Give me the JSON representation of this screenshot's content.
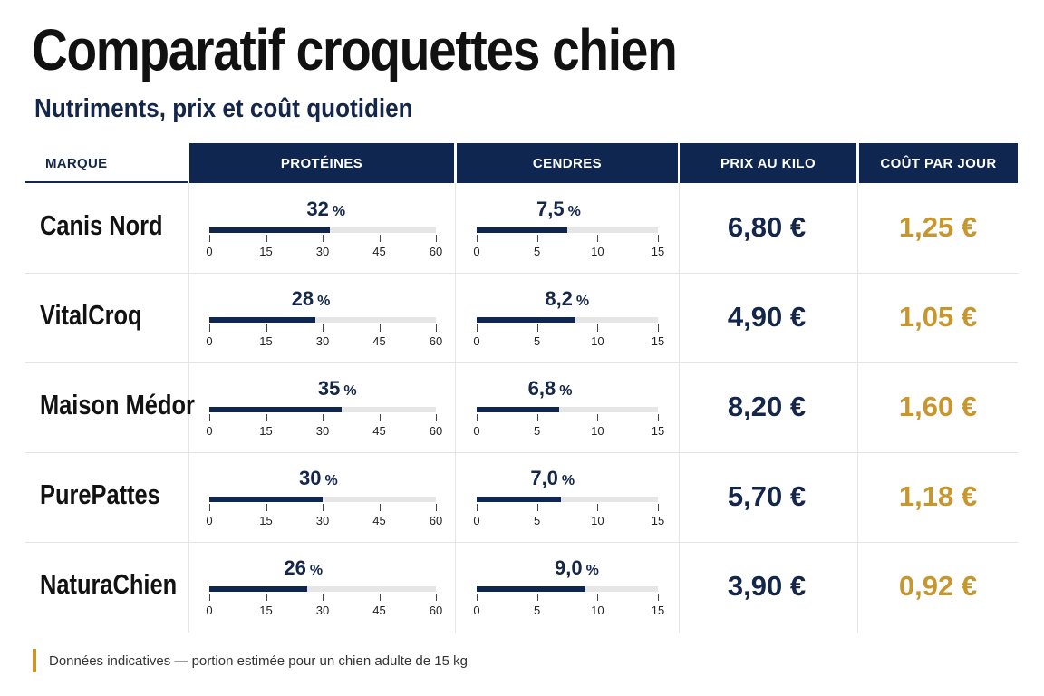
{
  "title": "Comparatif croquettes chien",
  "subtitle": "Nutriments, prix et coût quotidien",
  "headers": {
    "brand": "MARQUE",
    "protein": "PROTÉINES",
    "ash": "CENDRES",
    "price": "PRIX AU KILO",
    "daily_cost": "COÛT PAR JOUR"
  },
  "footnote": "Données indicatives — portion estimée pour un chien adulte de 15 kg",
  "colors": {
    "navy": "#0e2650",
    "gold": "#c9962e",
    "track": "#e6e6e6"
  },
  "chart_data": {
    "type": "table",
    "unit": "%",
    "protein_axis": {
      "ticks": [
        0,
        15,
        30,
        45,
        60
      ],
      "range": [
        0,
        60
      ]
    },
    "ash_axis": {
      "ticks": [
        0,
        5,
        10,
        15
      ],
      "range": [
        0,
        15
      ]
    },
    "rows": [
      {
        "brand": "Canis Nord",
        "protein": 32,
        "protein_label": "32",
        "ash": 7.5,
        "ash_label": "7,5",
        "price": "6,80 €",
        "daily_cost": "1,25 €"
      },
      {
        "brand": "VitalCroq",
        "protein": 28,
        "protein_label": "28",
        "ash": 8.2,
        "ash_label": "8,2",
        "price": "4,90 €",
        "daily_cost": "1,05 €"
      },
      {
        "brand": "Maison Médor",
        "protein": 35,
        "protein_label": "35",
        "ash": 6.8,
        "ash_label": "6,8",
        "price": "8,20 €",
        "daily_cost": "1,60 €"
      },
      {
        "brand": "PurePattes",
        "protein": 30,
        "protein_label": "30",
        "ash": 7.0,
        "ash_label": "7,0",
        "price": "5,70 €",
        "daily_cost": "1,18 €"
      },
      {
        "brand": "NaturaChien",
        "protein": 26,
        "protein_label": "26",
        "ash": 9.0,
        "ash_label": "9,0",
        "price": "3,90 €",
        "daily_cost": "0,92 €"
      }
    ]
  }
}
